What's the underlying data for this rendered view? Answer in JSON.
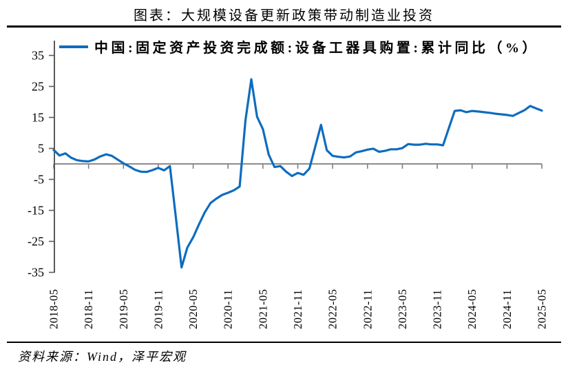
{
  "header": {
    "title": "图表：大规模设备更新政策带动制造业投资"
  },
  "legend": {
    "label": "中国:固定资产投资完成额:设备工器具购置:累计同比（%）"
  },
  "footer": {
    "source": "资料来源：Wind，泽平宏观"
  },
  "colors": {
    "line": "#0D6CBE",
    "axis": "#595959",
    "zero_line": "#8C8C8C",
    "tick": "#7F7F7F",
    "rule": "#000000",
    "label_text": "#000000"
  },
  "chart_data": {
    "type": "line",
    "title": "图表：大规模设备更新政策带动制造业投资",
    "series_name": "中国:固定资产投资完成额:设备工器具购置:累计同比（%）",
    "xlabel": "",
    "ylabel": "",
    "ylim": [
      -35,
      40
    ],
    "grid": "zero-line-only",
    "legend_position": "top",
    "y_ticks": [
      35,
      25,
      15,
      5,
      -5,
      -15,
      -25,
      -35
    ],
    "x_tick_labels": [
      "2018-05",
      "2018-11",
      "2019-05",
      "2019-11",
      "2020-05",
      "2020-11",
      "2021-05",
      "2021-11",
      "2022-05",
      "2022-11",
      "2023-05",
      "2023-11",
      "2024-05",
      "2024-11",
      "2025-05"
    ],
    "x_tick_every_n_points": 6,
    "x": [
      "2018-05",
      "2018-06",
      "2018-07",
      "2018-08",
      "2018-09",
      "2018-10",
      "2018-11",
      "2018-12",
      "2019-01",
      "2019-02",
      "2019-03",
      "2019-04",
      "2019-05",
      "2019-06",
      "2019-07",
      "2019-08",
      "2019-09",
      "2019-10",
      "2019-11",
      "2019-12",
      "2020-01",
      "2020-02",
      "2020-03",
      "2020-04",
      "2020-05",
      "2020-06",
      "2020-07",
      "2020-08",
      "2020-09",
      "2020-10",
      "2020-11",
      "2020-12",
      "2021-01",
      "2021-02",
      "2021-03",
      "2021-04",
      "2021-05",
      "2021-06",
      "2021-07",
      "2021-08",
      "2021-09",
      "2021-10",
      "2021-11",
      "2021-12",
      "2022-01",
      "2022-02",
      "2022-03",
      "2022-04",
      "2022-05",
      "2022-06",
      "2022-07",
      "2022-08",
      "2022-09",
      "2022-10",
      "2022-11",
      "2022-12",
      "2023-01",
      "2023-02",
      "2023-03",
      "2023-04",
      "2023-05",
      "2023-06",
      "2023-07",
      "2023-08",
      "2023-09",
      "2023-10",
      "2023-11",
      "2023-12",
      "2024-01",
      "2024-02",
      "2024-03",
      "2024-04",
      "2024-05",
      "2024-06",
      "2024-07",
      "2024-08",
      "2024-09",
      "2024-10",
      "2024-11",
      "2024-12",
      "2025-01",
      "2025-02",
      "2025-03",
      "2025-04",
      "2025-05"
    ],
    "values": [
      4.5,
      2.7,
      3.4,
      2.0,
      1.2,
      0.9,
      0.8,
      1.4,
      2.4,
      3.1,
      2.6,
      1.4,
      0.2,
      -0.8,
      -1.9,
      -2.5,
      -2.6,
      -2.0,
      -1.3,
      -2.1,
      -0.7,
      -17.0,
      -33.4,
      -27.0,
      -23.7,
      -19.5,
      -15.6,
      -12.6,
      -11.2,
      -10.0,
      -9.3,
      -8.5,
      -7.3,
      14.0,
      27.3,
      15.2,
      11.2,
      3.0,
      -1.0,
      -0.7,
      -2.5,
      -3.9,
      -2.9,
      -3.5,
      -1.5,
      5.5,
      12.6,
      4.4,
      2.6,
      2.3,
      2.1,
      2.4,
      3.7,
      4.1,
      4.6,
      4.9,
      3.9,
      4.2,
      4.7,
      4.7,
      5.1,
      6.4,
      6.2,
      6.2,
      6.5,
      6.3,
      6.3,
      6.0,
      11.6,
      17.1,
      17.3,
      16.7,
      17.1,
      16.9,
      16.7,
      16.5,
      16.2,
      16.0,
      15.8,
      15.5,
      16.4,
      17.3,
      18.7,
      17.9,
      17.2
    ]
  }
}
